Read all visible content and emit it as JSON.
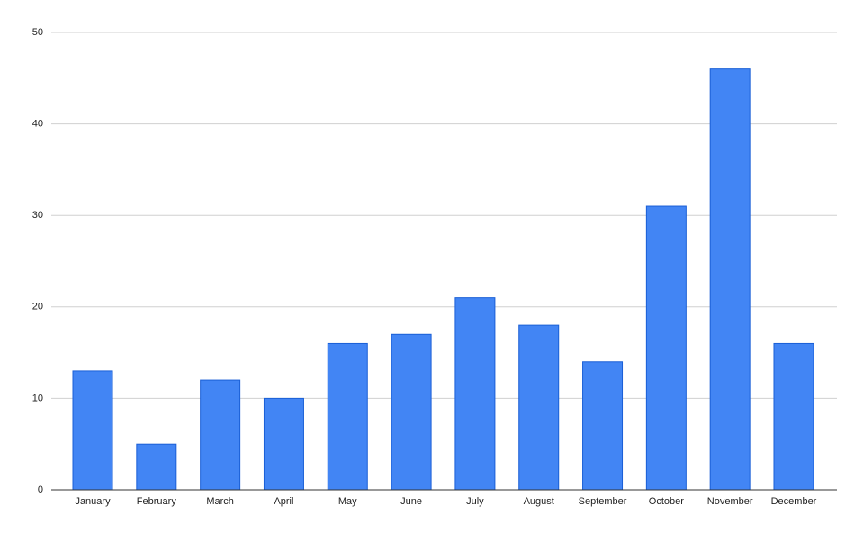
{
  "chart_data": {
    "type": "bar",
    "categories": [
      "January",
      "February",
      "March",
      "April",
      "May",
      "June",
      "July",
      "August",
      "September",
      "October",
      "November",
      "December"
    ],
    "values": [
      13,
      5,
      12,
      10,
      16,
      17,
      21,
      18,
      14,
      31,
      46,
      16
    ],
    "color": "#4285f4",
    "ylim": [
      0,
      50
    ],
    "yticks": [
      0,
      10,
      20,
      30,
      40,
      50
    ],
    "grid": true
  }
}
